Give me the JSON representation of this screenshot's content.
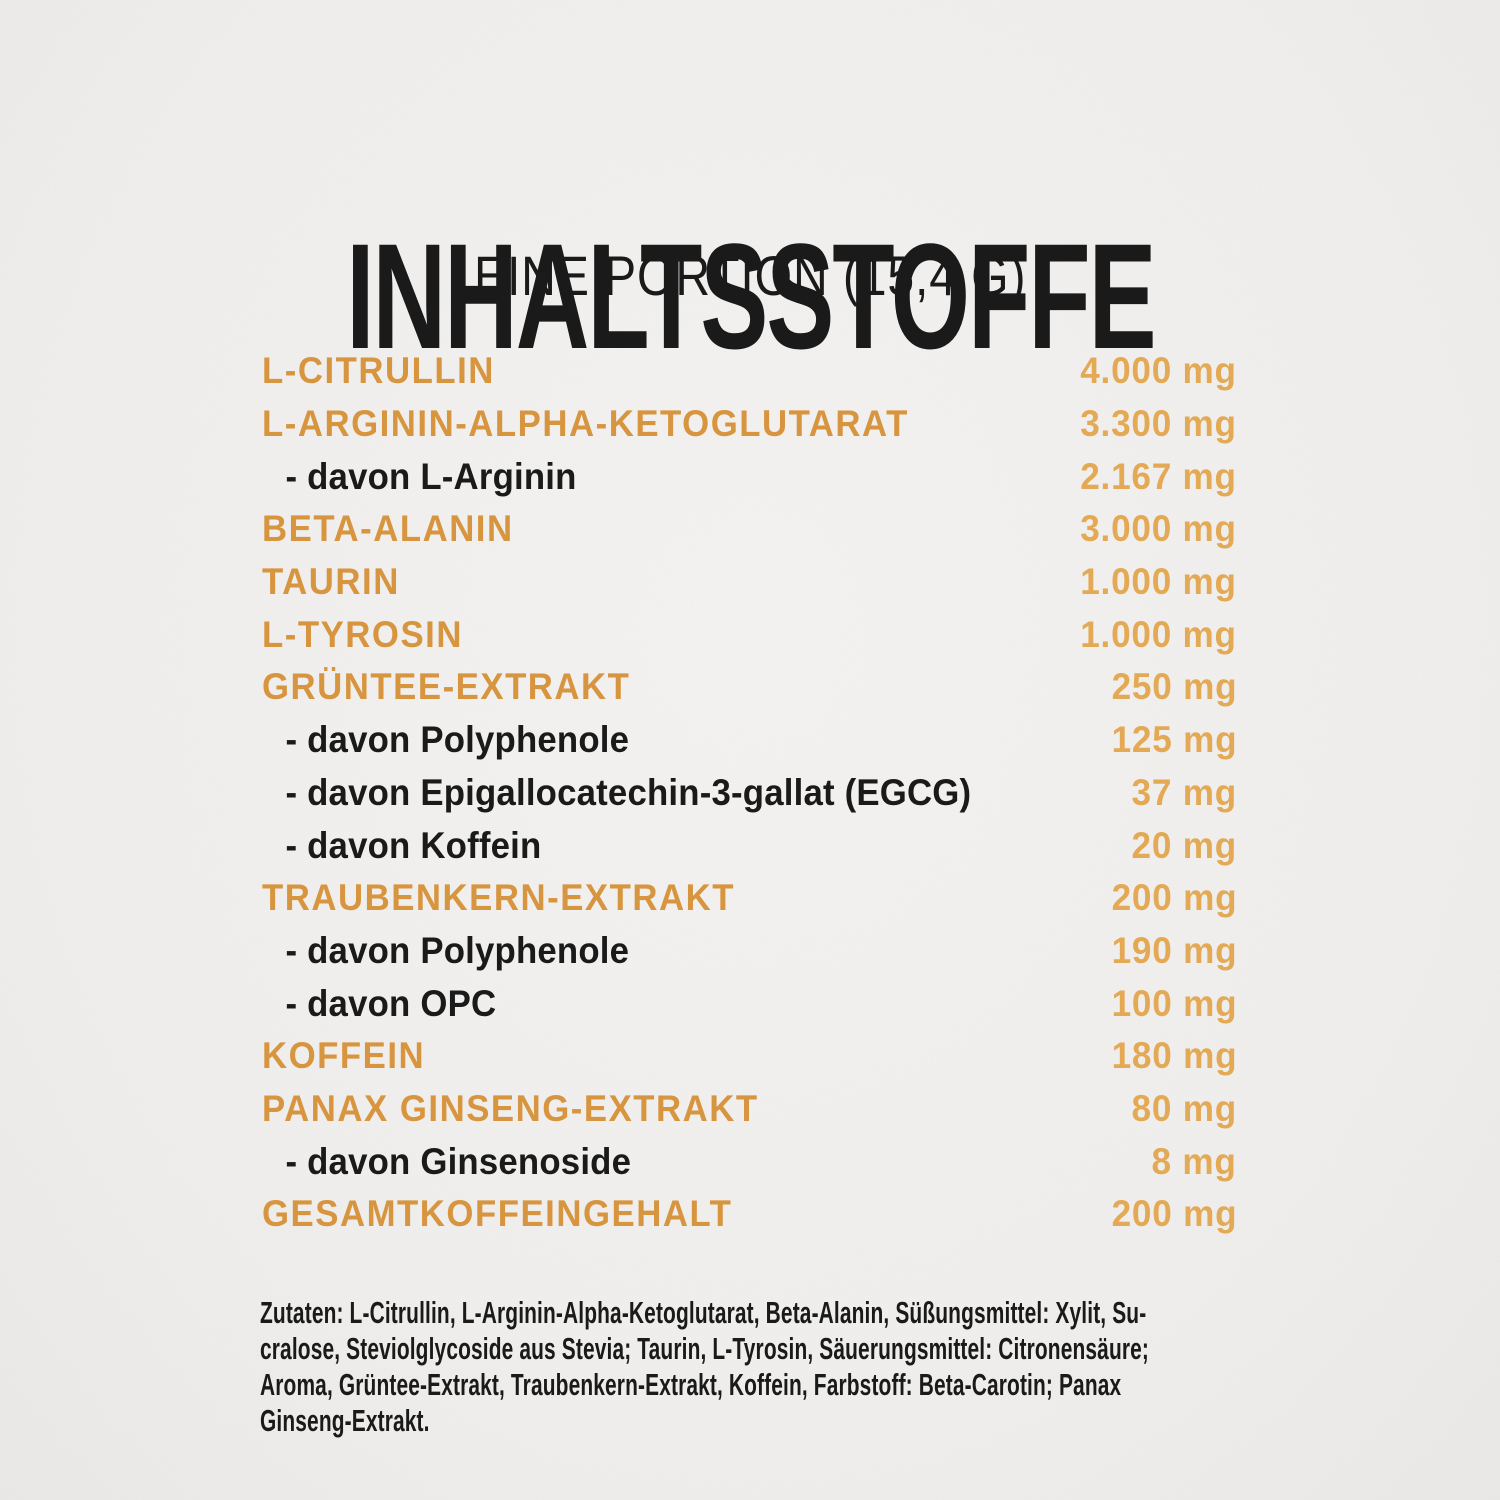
{
  "colors": {
    "background": "#f1f1ef",
    "ink": "#1a1a1a",
    "label_accent": "#d8953f",
    "value_accent": "#e4a954"
  },
  "header": {
    "title": "INHALTSSTOFFE",
    "subtitle": "EINE PORTION (15,4 G)"
  },
  "table": {
    "unit": "mg",
    "rows": [
      {
        "label": "L-CITRULLIN",
        "amount": "4.000 mg",
        "indent": false
      },
      {
        "label": "L-ARGININ-ALPHA-KETOGLUTARAT",
        "amount": "3.300 mg",
        "indent": false
      },
      {
        "label": "- davon L-Arginin",
        "amount": "2.167 mg",
        "indent": true
      },
      {
        "label": "BETA-ALANIN",
        "amount": "3.000 mg",
        "indent": false
      },
      {
        "label": "TAURIN",
        "amount": "1.000 mg",
        "indent": false
      },
      {
        "label": "L-TYROSIN",
        "amount": "1.000 mg",
        "indent": false
      },
      {
        "label": "GRÜNTEE-EXTRAKT",
        "amount": "250 mg",
        "indent": false
      },
      {
        "label": "- davon Polyphenole",
        "amount": "125 mg",
        "indent": true
      },
      {
        "label": "- davon Epigallocatechin-3-gallat (EGCG)",
        "amount": "37 mg",
        "indent": true
      },
      {
        "label": "- davon Koffein",
        "amount": "20 mg",
        "indent": true
      },
      {
        "label": "TRAUBENKERN-EXTRAKT",
        "amount": "200 mg",
        "indent": false
      },
      {
        "label": "- davon Polyphenole",
        "amount": "190 mg",
        "indent": true
      },
      {
        "label": "- davon OPC",
        "amount": "100 mg",
        "indent": true
      },
      {
        "label": "KOFFEIN",
        "amount": "180 mg",
        "indent": false
      },
      {
        "label": "PANAX GINSENG-EXTRAKT",
        "amount": "80 mg",
        "indent": false
      },
      {
        "label": "- davon Ginsenoside",
        "amount": "8 mg",
        "indent": true
      },
      {
        "label": "GESAMTKOFFEINGEHALT",
        "amount": "200 mg",
        "indent": false
      }
    ]
  },
  "ingredients": {
    "text": "Zutaten: L-Citrullin, L-Arginin-Alpha-Ketoglutarat, Beta-Alanin, Süßungsmittel: Xylit, Su-\ncralose, Steviolglycoside aus Stevia; Taurin, L-Tyrosin, Säuerungsmittel: Citronensäure;\nAroma, Grüntee-Extrakt, Traubenkern-Extrakt, Koffein, Farbstoff: Beta-Carotin; Panax\nGinseng-Extrakt."
  }
}
